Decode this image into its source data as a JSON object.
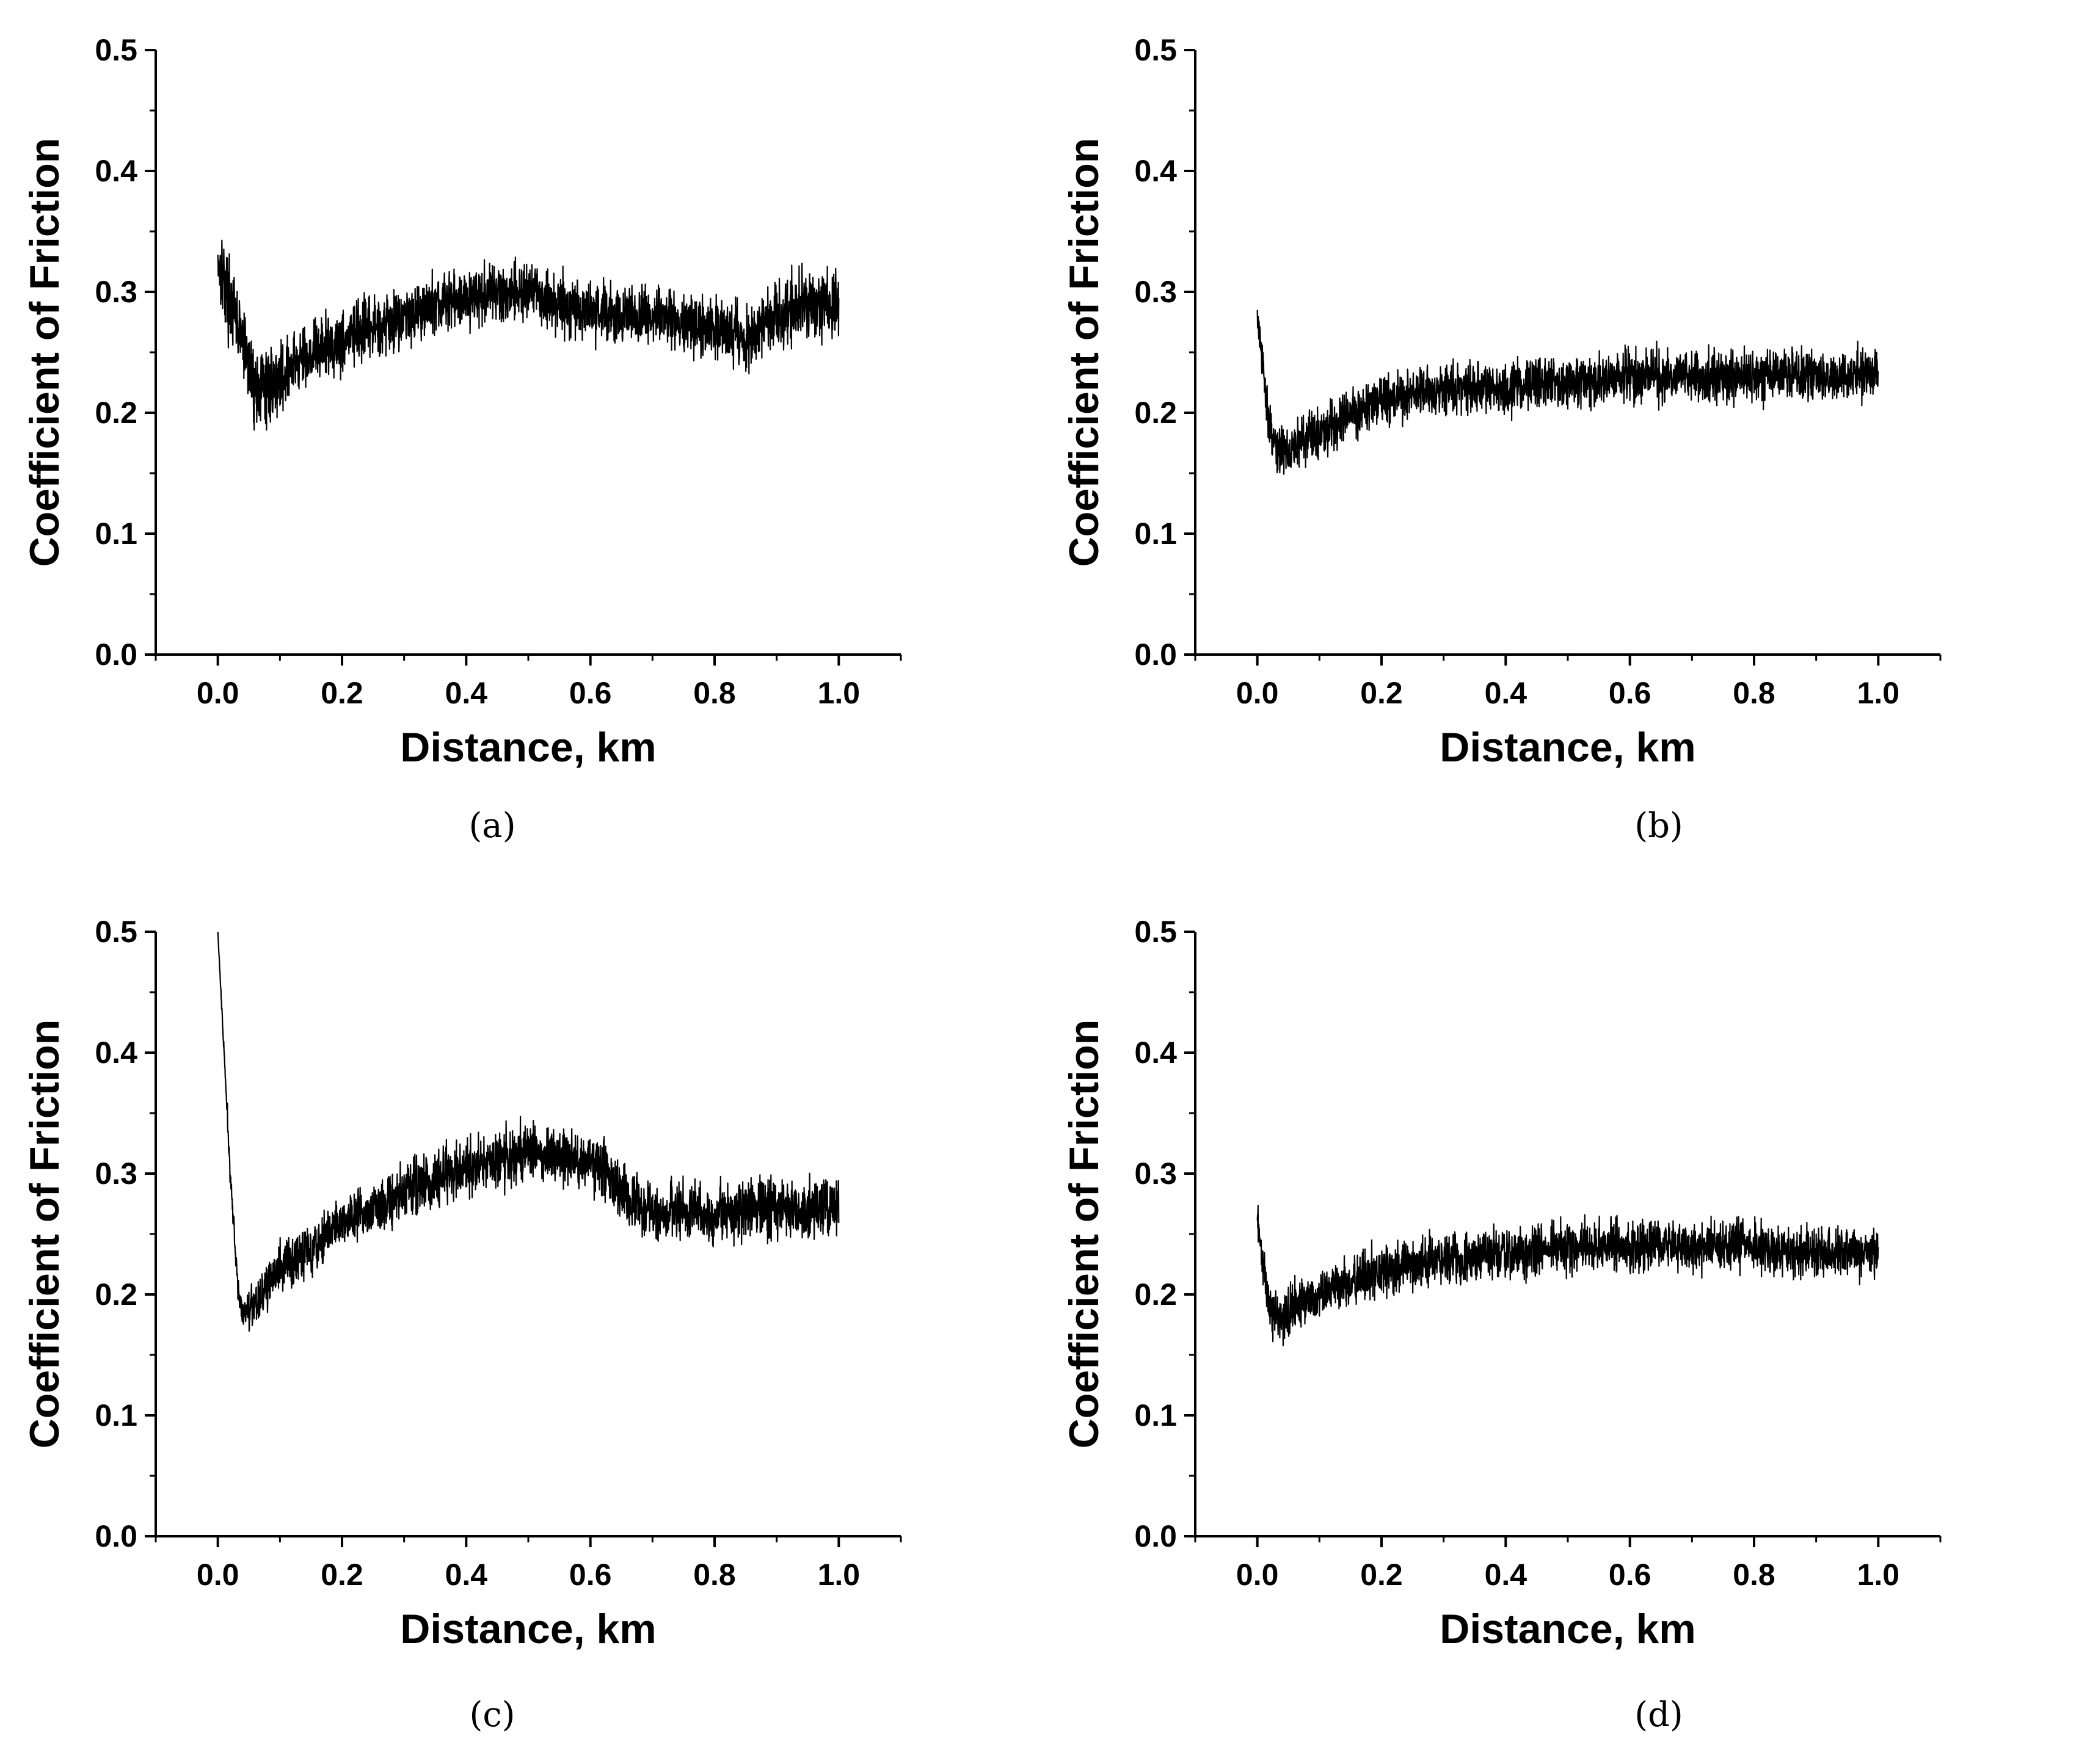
{
  "figure": {
    "panels": [
      {
        "id": "a",
        "caption": "(a)"
      },
      {
        "id": "b",
        "caption": "(b)"
      },
      {
        "id": "c",
        "caption": "(c)"
      },
      {
        "id": "d",
        "caption": "(d)"
      }
    ]
  },
  "chart_data": [
    {
      "type": "line",
      "panel": "(a)",
      "xlabel": "Distance, km",
      "ylabel": "Coefficient of Friction",
      "xlim": [
        -0.1,
        1.1
      ],
      "ylim": [
        0.0,
        0.5
      ],
      "xticks": [
        "0.0",
        "0.2",
        "0.4",
        "0.6",
        "0.8",
        "1.0"
      ],
      "yticks": [
        "0.0",
        "0.1",
        "0.2",
        "0.3",
        "0.4",
        "0.5"
      ],
      "color": "#000000",
      "series": [
        {
          "x": [
            0.0,
            0.01,
            0.02,
            0.04,
            0.06,
            0.08,
            0.1,
            0.15,
            0.2,
            0.25,
            0.3,
            0.35,
            0.4,
            0.45,
            0.5,
            0.55,
            0.6,
            0.65,
            0.7,
            0.75,
            0.8,
            0.85,
            0.9,
            0.95,
            1.0
          ],
          "y": [
            0.33,
            0.31,
            0.29,
            0.26,
            0.22,
            0.22,
            0.23,
            0.25,
            0.26,
            0.27,
            0.28,
            0.29,
            0.295,
            0.3,
            0.3,
            0.29,
            0.285,
            0.28,
            0.28,
            0.275,
            0.27,
            0.26,
            0.28,
            0.29,
            0.29
          ],
          "band": [
            0.05,
            0.05,
            0.045,
            0.045,
            0.045,
            0.045,
            0.04,
            0.04,
            0.04,
            0.035,
            0.035,
            0.035,
            0.035,
            0.035,
            0.035,
            0.035,
            0.035,
            0.035,
            0.035,
            0.035,
            0.035,
            0.035,
            0.04,
            0.04,
            0.04
          ]
        }
      ]
    },
    {
      "type": "line",
      "panel": "(b)",
      "xlabel": "Distance, km",
      "ylabel": "Coefficient of Friction",
      "xlim": [
        -0.1,
        1.1
      ],
      "ylim": [
        0.0,
        0.5
      ],
      "xticks": [
        "0.0",
        "0.2",
        "0.4",
        "0.6",
        "0.8",
        "1.0"
      ],
      "yticks": [
        "0.0",
        "0.1",
        "0.2",
        "0.3",
        "0.4",
        "0.5"
      ],
      "color": "#000000",
      "series": [
        {
          "x": [
            0.0,
            0.01,
            0.02,
            0.03,
            0.05,
            0.08,
            0.1,
            0.15,
            0.2,
            0.25,
            0.3,
            0.35,
            0.4,
            0.45,
            0.5,
            0.55,
            0.6,
            0.65,
            0.7,
            0.75,
            0.8,
            0.85,
            0.9,
            0.95,
            1.0
          ],
          "y": [
            0.28,
            0.23,
            0.19,
            0.17,
            0.17,
            0.18,
            0.185,
            0.2,
            0.21,
            0.215,
            0.22,
            0.22,
            0.22,
            0.225,
            0.225,
            0.225,
            0.23,
            0.23,
            0.23,
            0.23,
            0.23,
            0.23,
            0.23,
            0.23,
            0.235
          ],
          "band": [
            0.02,
            0.025,
            0.03,
            0.03,
            0.03,
            0.03,
            0.03,
            0.03,
            0.03,
            0.03,
            0.03,
            0.03,
            0.03,
            0.03,
            0.03,
            0.03,
            0.03,
            0.03,
            0.03,
            0.03,
            0.03,
            0.03,
            0.03,
            0.03,
            0.03
          ]
        }
      ]
    },
    {
      "type": "line",
      "panel": "(c)",
      "xlabel": "Distance, km",
      "ylabel": "Coefficient of Friction",
      "xlim": [
        -0.1,
        1.1
      ],
      "ylim": [
        0.0,
        0.5
      ],
      "xticks": [
        "0.0",
        "0.2",
        "0.4",
        "0.6",
        "0.8",
        "1.0"
      ],
      "yticks": [
        "0.0",
        "0.1",
        "0.2",
        "0.3",
        "0.4",
        "0.5"
      ],
      "color": "#000000",
      "series": [
        {
          "x": [
            0.0,
            0.01,
            0.02,
            0.03,
            0.04,
            0.05,
            0.07,
            0.1,
            0.15,
            0.2,
            0.25,
            0.3,
            0.35,
            0.4,
            0.45,
            0.5,
            0.55,
            0.6,
            0.63,
            0.66,
            0.7,
            0.75,
            0.8,
            0.85,
            0.9,
            0.95,
            1.0
          ],
          "y": [
            0.5,
            0.4,
            0.3,
            0.22,
            0.18,
            0.19,
            0.2,
            0.22,
            0.24,
            0.26,
            0.27,
            0.285,
            0.295,
            0.305,
            0.31,
            0.32,
            0.315,
            0.31,
            0.3,
            0.275,
            0.27,
            0.27,
            0.265,
            0.27,
            0.27,
            0.27,
            0.27
          ],
          "band": [
            0.0,
            0.01,
            0.015,
            0.015,
            0.02,
            0.025,
            0.03,
            0.03,
            0.03,
            0.03,
            0.03,
            0.035,
            0.035,
            0.035,
            0.035,
            0.035,
            0.035,
            0.035,
            0.035,
            0.035,
            0.035,
            0.035,
            0.035,
            0.035,
            0.035,
            0.035,
            0.035
          ]
        }
      ]
    },
    {
      "type": "line",
      "panel": "(d)",
      "xlabel": "Distance, km",
      "ylabel": "Coefficient of Friction",
      "xlim": [
        -0.1,
        1.1
      ],
      "ylim": [
        0.0,
        0.5
      ],
      "xticks": [
        "0.0",
        "0.2",
        "0.4",
        "0.6",
        "0.8",
        "1.0"
      ],
      "yticks": [
        "0.0",
        "0.1",
        "0.2",
        "0.3",
        "0.4",
        "0.5"
      ],
      "color": "#000000",
      "series": [
        {
          "x": [
            0.0,
            0.01,
            0.02,
            0.04,
            0.06,
            0.08,
            0.1,
            0.15,
            0.2,
            0.25,
            0.3,
            0.35,
            0.4,
            0.45,
            0.5,
            0.55,
            0.6,
            0.65,
            0.7,
            0.75,
            0.8,
            0.85,
            0.9,
            0.95,
            1.0
          ],
          "y": [
            0.26,
            0.22,
            0.19,
            0.18,
            0.19,
            0.195,
            0.2,
            0.21,
            0.22,
            0.225,
            0.23,
            0.23,
            0.235,
            0.235,
            0.24,
            0.24,
            0.24,
            0.24,
            0.24,
            0.24,
            0.24,
            0.235,
            0.235,
            0.235,
            0.235
          ],
          "band": [
            0.02,
            0.025,
            0.03,
            0.03,
            0.03,
            0.03,
            0.03,
            0.03,
            0.03,
            0.03,
            0.03,
            0.03,
            0.03,
            0.03,
            0.03,
            0.03,
            0.03,
            0.03,
            0.03,
            0.03,
            0.03,
            0.03,
            0.03,
            0.03,
            0.03
          ]
        }
      ]
    }
  ]
}
